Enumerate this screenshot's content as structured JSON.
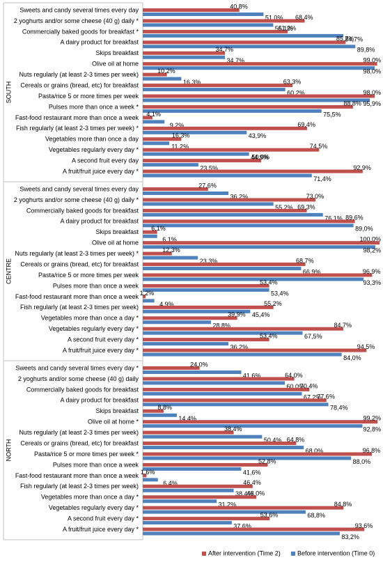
{
  "chart_data": {
    "type": "bar",
    "orientation": "horizontal",
    "xlim": [
      0,
      100
    ],
    "panels": [
      "SOUTH",
      "CENTRE",
      "NORTH"
    ],
    "categories": [
      [
        "Sweets and candy several times every day",
        "2 yoghurts and/or some cheese (40 g) daily *",
        "Commercially baked goods for breakfast *",
        "A dairy product for breakfast",
        "Skips breakfast",
        "Olive oil at home",
        "Nuts regularly (at least 2-3 times per week)",
        "Cereals or grains (bread, etc) for breakfast",
        "Pasta/rice 5 or more times per week",
        "Pulses more than once a week *",
        "Fast-food restaurant more than once a week",
        "Fish regularly (at least 2-3 times per week) *",
        "Vegetables more than once a day",
        "Vegetables regularly every day *",
        "A second fruit every day",
        "A fruit/fruit juice every day *"
      ],
      [
        "Sweets and candy several times every day",
        "2 yoghurts and/or some cheese (40 g) daily *",
        "Commercially baked goods for breakfast",
        "A dairy product for breakfast",
        "Skips breakfast",
        "Olive oil at home",
        "Nuts regularly (at least 2-3 times per week) *",
        "Cereals or grains (bread, etc) for breakfast",
        "Pasta/rice 5 or more times per week",
        "Pulses more than once a week",
        "Fast-food restaurant more than once a week",
        "Fish regularly (at least 2-3 times per week)",
        "Vegetables more than once a day *",
        "Vegetables regularly every day *",
        "A second fruit every day *",
        "A fruit/fruit juice every day *"
      ],
      [
        "Sweets and candy several times every day *",
        "2 yoghurts and/or some cheese (40 g) daily",
        "Commercially baked goods for breakfast",
        "A dairy product for breakfast",
        "Skips breakfast",
        "Olive oil at home *",
        "Nuts regularly (at least 2-3 times per week)",
        "Cereals or grains (bread, etc) for breakfast",
        "Pasta/rice 5 or more times per week *",
        "Pulses more than once a week",
        "Fast-food restaurant more than once a week",
        "Fish regularly (at least 2-3 times per week)",
        "Vegetables more than once a day *",
        "Vegetables regularly every day *",
        "A second fruit every day *",
        "A fruit/fruit juice every day *"
      ]
    ],
    "series": [
      {
        "name": "After intervention (Time 2)",
        "color": "#c0504d",
        "values": [
          [
            40.8,
            68.4,
            61.2,
            85.7,
            34.7,
            99.0,
            10.2,
            63.3,
            98.0,
            88.8,
            4.1,
            69.4,
            16.3,
            74.5,
            50.0,
            92.9
          ],
          [
            27.6,
            73.0,
            69.3,
            89.6,
            6.1,
            100.0,
            12.3,
            68.7,
            96.9,
            53.4,
            1.2,
            55.2,
            39.9,
            84.7,
            53.4,
            94.5
          ],
          [
            24.0,
            64.0,
            70.4,
            77.6,
            8.8,
            99.2,
            38.4,
            64.8,
            96.8,
            52.8,
            1.6,
            46.4,
            48.0,
            84.8,
            53.6,
            93.6
          ]
        ],
        "value_labels": [
          [
            "40,8%",
            "68,4%",
            "61,2%",
            "85,7%",
            "34,7%",
            "99,0%",
            "10,2%",
            "63,3%",
            "98,0%",
            "88,8%",
            "4,1%",
            "69,4%",
            "16,3%",
            "74,5%",
            "50,0%",
            "92,9%"
          ],
          [
            "27,6%",
            "73,0%",
            "69,3%",
            "89,6%",
            "6,1%",
            "100,0%",
            "12,3%",
            "68,7%",
            "96,9%",
            "53,4%",
            "1,2%",
            "55,2%",
            "39,9%",
            "84,7%",
            "53,4%",
            "94,5%"
          ],
          [
            "24,0%",
            "64,0%",
            "70,4%",
            "77,6%",
            "8,8%",
            "99,2%",
            "38,4%",
            "64,8%",
            "96,8%",
            "52,8%",
            "1,6%",
            "46,4%",
            "48,0%",
            "84,8%",
            "53,6%",
            "93,6%"
          ]
        ]
      },
      {
        "name": "Before intervention (Time 0)",
        "color": "#4f81bd",
        "values": [
          [
            51.0,
            55.1,
            84.7,
            89.8,
            34.7,
            98.0,
            16.3,
            60.2,
            95.9,
            75.5,
            9.2,
            43.9,
            11.2,
            44.9,
            23.5,
            71.4
          ],
          [
            36.2,
            55.2,
            76.1,
            89.0,
            6.1,
            98.2,
            23.3,
            66.9,
            93.3,
            53.4,
            4.9,
            45.4,
            28.8,
            67.5,
            36.2,
            84.0
          ],
          [
            41.6,
            60.0,
            67.2,
            78.4,
            14.4,
            92.8,
            50.4,
            68.0,
            88.0,
            41.6,
            6.4,
            38.4,
            31.2,
            68.8,
            37.6,
            83.2
          ]
        ],
        "value_labels": [
          [
            "51,0%",
            "55,1%",
            "84,7%",
            "89,8%",
            "34,7%",
            "98,0%",
            "16,3%",
            "60,2%",
            "95,9%",
            "75,5%",
            "9,2%",
            "43,9%",
            "11,2%",
            "44,9%",
            "23,5%",
            "71,4%"
          ],
          [
            "36,2%",
            "55,2%",
            "76,1%",
            "89,0%",
            "6,1%",
            "98,2%",
            "23,3%",
            "66,9%",
            "93,3%",
            "53,4%",
            "4,9%",
            "45,4%",
            "28,8%",
            "67,5%",
            "36,2%",
            "84,0%"
          ],
          [
            "41,6%",
            "60,0%",
            "67,2%",
            "78,4%",
            "14,4%",
            "92,8%",
            "50,4%",
            "68,0%",
            "88,0%",
            "41,6%",
            "6,4%",
            "38,4%",
            "31,2%",
            "68,8%",
            "37,6%",
            "83,2%"
          ]
        ]
      }
    ],
    "legend": "bottom"
  }
}
